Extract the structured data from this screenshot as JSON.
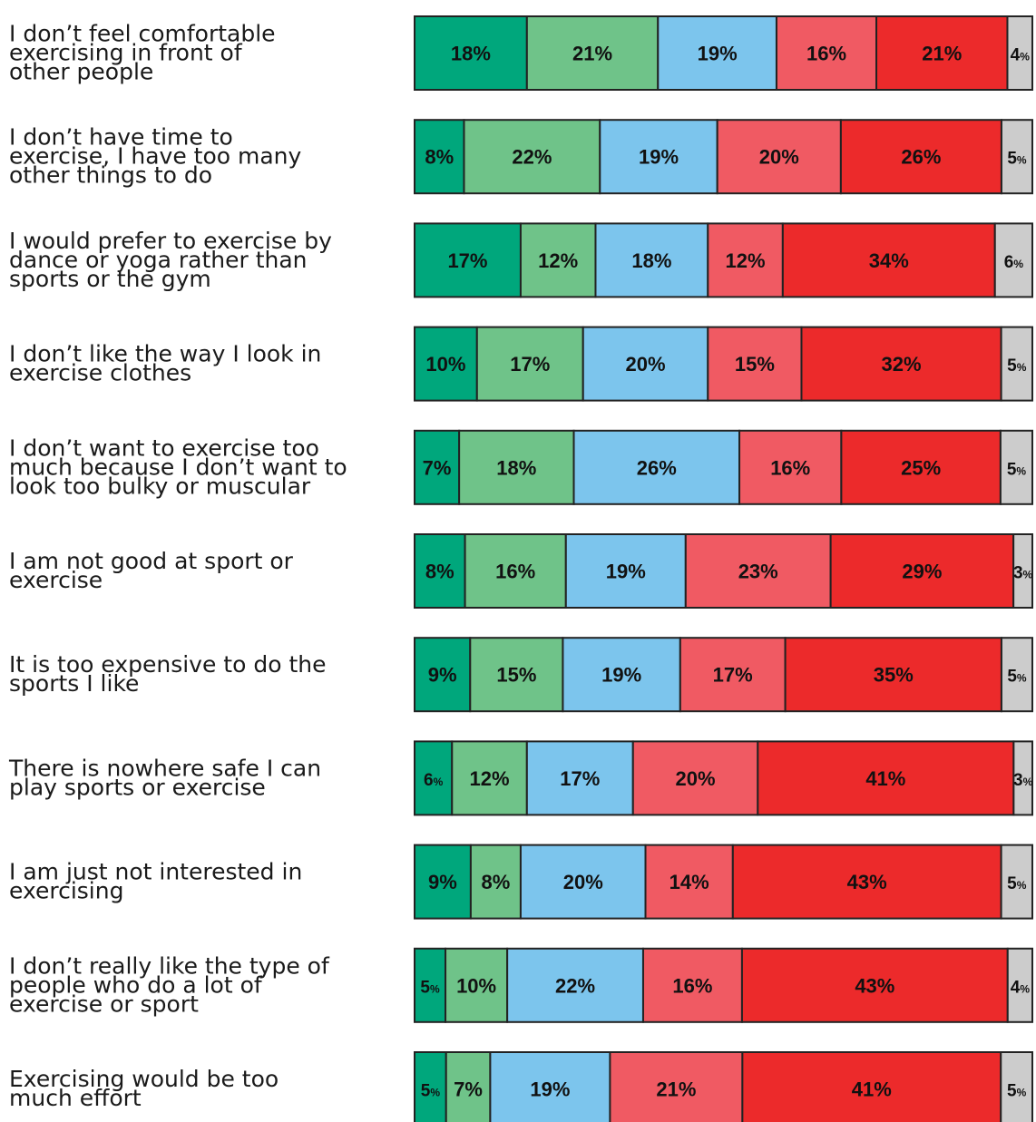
{
  "chart_data": {
    "type": "bar",
    "orientation": "horizontal",
    "stacked": true,
    "normalized": true,
    "colors": [
      "#00a77c",
      "#6fc389",
      "#7cc5ed",
      "#f05a63",
      "#ec2a2b",
      "#cccccc"
    ],
    "categories": [
      "I don’t feel comfortable exercising in front of other people",
      "I don’t have time to exercise, I have too many other things to do",
      "I would prefer to exercise by dance or yoga rather than sports or the gym",
      "I don’t like the way I look in exercise clothes",
      "I don’t want to exercise too much because I don’t want to look too bulky or muscular",
      "I am not good at sport or exercise",
      "It is too expensive to do the sports I like",
      "There is nowhere safe I can play sports or exercise",
      "I am just not interested in exercising",
      "I don’t really like the type of people who do a lot of exercise or sport",
      "Exercising would be too much effort"
    ],
    "label_lines": [
      [
        "I don’t feel comfortable",
        "exercising in front of",
        "other people"
      ],
      [
        "I don’t have time to",
        "exercise, I have too many",
        "other things to do"
      ],
      [
        "I would prefer to exercise by",
        "dance or yoga rather than",
        "sports or the gym"
      ],
      [
        "I don’t like the way I look in",
        "exercise clothes"
      ],
      [
        "I don’t want to exercise too",
        "much because I don’t want to",
        "look too bulky or muscular"
      ],
      [
        "I am not good at sport or",
        "exercise"
      ],
      [
        "It is too expensive to do the",
        "sports I like"
      ],
      [
        "There is nowhere safe I can",
        "play sports or exercise"
      ],
      [
        "I am just not interested in",
        "exercising"
      ],
      [
        "I don’t really like the type of",
        "people who do a lot of",
        "exercise or sport"
      ],
      [
        "Exercising would be too",
        "much effort"
      ]
    ],
    "rows": [
      [
        18,
        21,
        19,
        16,
        21,
        4
      ],
      [
        8,
        22,
        19,
        20,
        26,
        5
      ],
      [
        17,
        12,
        18,
        12,
        34,
        6
      ],
      [
        10,
        17,
        20,
        15,
        32,
        5
      ],
      [
        7,
        18,
        26,
        16,
        25,
        5
      ],
      [
        8,
        16,
        19,
        23,
        29,
        3
      ],
      [
        9,
        15,
        19,
        17,
        35,
        5
      ],
      [
        6,
        12,
        17,
        20,
        41,
        3
      ],
      [
        9,
        8,
        20,
        14,
        43,
        5
      ],
      [
        5,
        10,
        22,
        16,
        43,
        4
      ],
      [
        5,
        7,
        19,
        21,
        41,
        5
      ]
    ],
    "value_suffix": "%",
    "legend": "none",
    "grid": false
  }
}
